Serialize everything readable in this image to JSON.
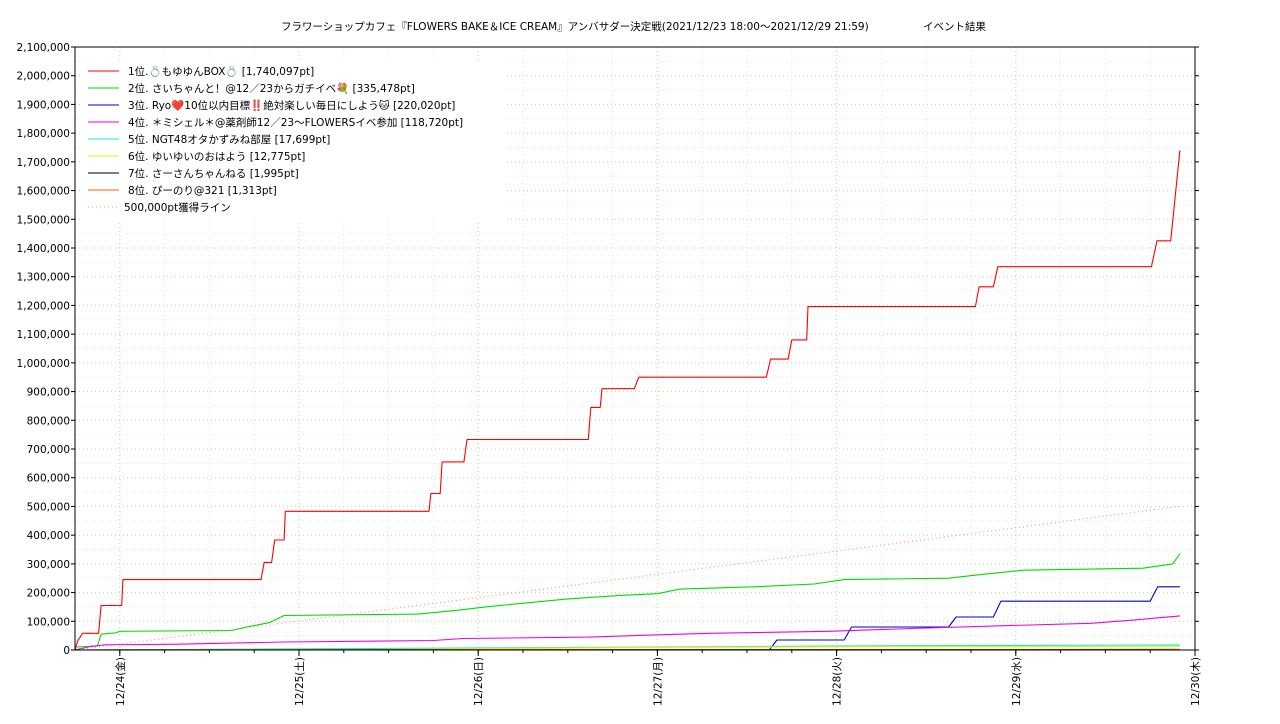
{
  "chart_data": {
    "type": "line",
    "title": "フラワーショップカフェ『FLOWERS BAKE＆ICE CREAM』アンバサダー決定戦(2021/12/23 18:00～2021/12/29 21:59)",
    "subtitle": "イベント結果",
    "ylim": [
      0,
      2100000
    ],
    "yticks": [
      0,
      100000,
      200000,
      300000,
      400000,
      500000,
      600000,
      700000,
      800000,
      900000,
      1000000,
      1100000,
      1200000,
      1300000,
      1400000,
      1500000,
      1600000,
      1700000,
      1800000,
      1900000,
      2000000,
      2100000
    ],
    "ytick_labels": [
      "0",
      "100,000",
      "200,000",
      "300,000",
      "400,000",
      "500,000",
      "600,000",
      "700,000",
      "800,000",
      "900,000",
      "1,000,000",
      "1,100,000",
      "1,200,000",
      "1,300,000",
      "1,400,000",
      "1,500,000",
      "1,600,000",
      "1,700,000",
      "1,800,000",
      "1,900,000",
      "2,000,000",
      "2,100,000"
    ],
    "xlim": [
      "2021-12-23 18:00",
      "2021-12-30 00:00"
    ],
    "xticks": [
      "2021-12-24 00:00",
      "2021-12-25 00:00",
      "2021-12-26 00:00",
      "2021-12-27 00:00",
      "2021-12-28 00:00",
      "2021-12-29 00:00",
      "2021-12-30 00:00"
    ],
    "xtick_labels": [
      "12/24(金)",
      "12/25(土)",
      "12/26(日)",
      "12/27(月)",
      "12/28(火)",
      "12/29(水)",
      "12/30(木)"
    ],
    "grid": true,
    "legend_position": "top-left",
    "series": [
      {
        "name": "1位.💍もゆゆんBOX💍 [1,740,097pt]",
        "color": "#ff0000",
        "x": [
          "2021-12-23 18:00",
          "2021-12-23 18:20",
          "2021-12-23 19:00",
          "2021-12-23 19:30",
          "2021-12-23 21:10",
          "2021-12-23 21:30",
          "2021-12-23 23:10",
          "2021-12-23 23:25",
          "2021-12-24 00:15",
          "2021-12-24 00:25",
          "2021-12-24 18:55",
          "2021-12-24 19:20",
          "2021-12-24 20:20",
          "2021-12-24 20:45",
          "2021-12-24 22:00",
          "2021-12-24 22:10",
          "2021-12-25 17:25",
          "2021-12-25 17:40",
          "2021-12-25 18:55",
          "2021-12-25 19:10",
          "2021-12-25 22:05",
          "2021-12-25 22:30",
          "2021-12-26 14:45",
          "2021-12-26 15:05",
          "2021-12-26 16:20",
          "2021-12-26 16:35",
          "2021-12-26 20:55",
          "2021-12-26 21:30",
          "2021-12-26 22:00",
          "2021-12-26 22:20",
          "2021-12-27 14:35",
          "2021-12-27 15:10",
          "2021-12-27 17:30",
          "2021-12-27 18:00",
          "2021-12-27 20:00",
          "2021-12-27 20:10",
          "2021-12-28 18:35",
          "2021-12-28 19:05",
          "2021-12-28 21:00",
          "2021-12-28 21:35",
          "2021-12-29 18:10",
          "2021-12-29 18:55",
          "2021-12-29 20:45",
          "2021-12-29 21:59"
        ],
        "y": [
          0,
          30000,
          58000,
          58000,
          58000,
          155000,
          155000,
          155000,
          155000,
          245000,
          245000,
          305000,
          305000,
          383000,
          383000,
          483000,
          483000,
          545000,
          545000,
          655000,
          655000,
          733000,
          733000,
          845000,
          845000,
          910000,
          910000,
          950000,
          950000,
          950000,
          950000,
          1013000,
          1013000,
          1080000,
          1080000,
          1196000,
          1196000,
          1265000,
          1265000,
          1335000,
          1335000,
          1425000,
          1425000,
          1740097
        ]
      },
      {
        "name": "2位. さいちゃんと！@12／23からガチイベ💐 [335,478pt]",
        "color": "#00dd00",
        "x": [
          "2021-12-23 18:00",
          "2021-12-23 21:00",
          "2021-12-23 21:30",
          "2021-12-23 23:30",
          "2021-12-24 00:00",
          "2021-12-24 15:00",
          "2021-12-24 17:00",
          "2021-12-24 20:00",
          "2021-12-24 22:00",
          "2021-12-25 16:00",
          "2021-12-25 21:00",
          "2021-12-26 01:00",
          "2021-12-26 12:00",
          "2021-12-26 19:00",
          "2021-12-27 00:00",
          "2021-12-27 03:00",
          "2021-12-27 13:00",
          "2021-12-27 21:00",
          "2021-12-28 01:00",
          "2021-12-28 15:00",
          "2021-12-28 19:00",
          "2021-12-29 01:00",
          "2021-12-29 17:00",
          "2021-12-29 21:00",
          "2021-12-29 21:59"
        ],
        "y": [
          10000,
          14000,
          55000,
          60000,
          65000,
          68000,
          80000,
          95000,
          120000,
          125000,
          138000,
          150000,
          178000,
          190000,
          196000,
          212000,
          220000,
          230000,
          245000,
          250000,
          262000,
          278000,
          285000,
          300000,
          335478
        ]
      },
      {
        "name": "3位. Ryo❤️10位以内目標‼️絶対楽しい毎日にしよう🐱 [220,020pt]",
        "color": "#0000cc",
        "x": [
          "2021-12-23 18:00",
          "2021-12-27 15:00",
          "2021-12-27 16:00",
          "2021-12-28 01:00",
          "2021-12-28 02:00",
          "2021-12-28 15:00",
          "2021-12-28 16:00",
          "2021-12-28 21:00",
          "2021-12-28 22:00",
          "2021-12-29 18:00",
          "2021-12-29 19:00",
          "2021-12-29 21:59"
        ],
        "y": [
          0,
          0,
          35000,
          35000,
          80000,
          80000,
          115000,
          115000,
          170000,
          170000,
          220000,
          220020
        ]
      },
      {
        "name": "4位. ＊ミシェル＊@薬剤師12／23〜FLOWERSイベ参加 [118,720pt]",
        "color": "#ee00ee",
        "x": [
          "2021-12-23 18:00",
          "2021-12-23 20:00",
          "2021-12-23 22:00",
          "2021-12-24 07:00",
          "2021-12-24 22:00",
          "2021-12-25 18:00",
          "2021-12-25 22:00",
          "2021-12-26 15:00",
          "2021-12-26 23:00",
          "2021-12-27 07:00",
          "2021-12-27 23:00",
          "2021-12-28 10:00",
          "2021-12-28 23:00",
          "2021-12-29 10:00",
          "2021-12-29 16:00",
          "2021-12-29 21:59"
        ],
        "y": [
          0,
          12000,
          18000,
          20000,
          28000,
          33000,
          40000,
          45000,
          52000,
          58000,
          65000,
          75000,
          85000,
          93000,
          105000,
          118720
        ]
      },
      {
        "name": "5位. NGT48オタかずみね部屋 [17,699pt]",
        "color": "#00eeee",
        "x": [
          "2021-12-23 18:00",
          "2021-12-27 00:00",
          "2021-12-28 00:00",
          "2021-12-29 00:00",
          "2021-12-29 21:59"
        ],
        "y": [
          0,
          10000,
          14000,
          16000,
          17699
        ]
      },
      {
        "name": "6位. ゆいゆいのおはよう [12,775pt]",
        "color": "#eeee00",
        "x": [
          "2021-12-23 18:00",
          "2021-12-25 12:00",
          "2021-12-26 00:00",
          "2021-12-27 00:00",
          "2021-12-28 00:00",
          "2021-12-29 21:59"
        ],
        "y": [
          0,
          2000,
          5000,
          9000,
          11000,
          12775
        ]
      },
      {
        "name": "7位. さーさんちゃんねる [1,995pt]",
        "color": "#000000",
        "x": [
          "2021-12-23 18:00",
          "2021-12-29 21:59"
        ],
        "y": [
          0,
          1995
        ]
      },
      {
        "name": "8位. ぴーのり@321 [1,313pt]",
        "color": "#ff6600",
        "x": [
          "2021-12-23 18:00",
          "2021-12-29 21:59"
        ],
        "y": [
          0,
          1313
        ]
      },
      {
        "name": "500,000pt獲得ライン",
        "color": "#ff8888",
        "style": "dotted",
        "x": [
          "2021-12-23 18:00",
          "2021-12-29 21:59"
        ],
        "y": [
          0,
          500000
        ]
      }
    ]
  }
}
